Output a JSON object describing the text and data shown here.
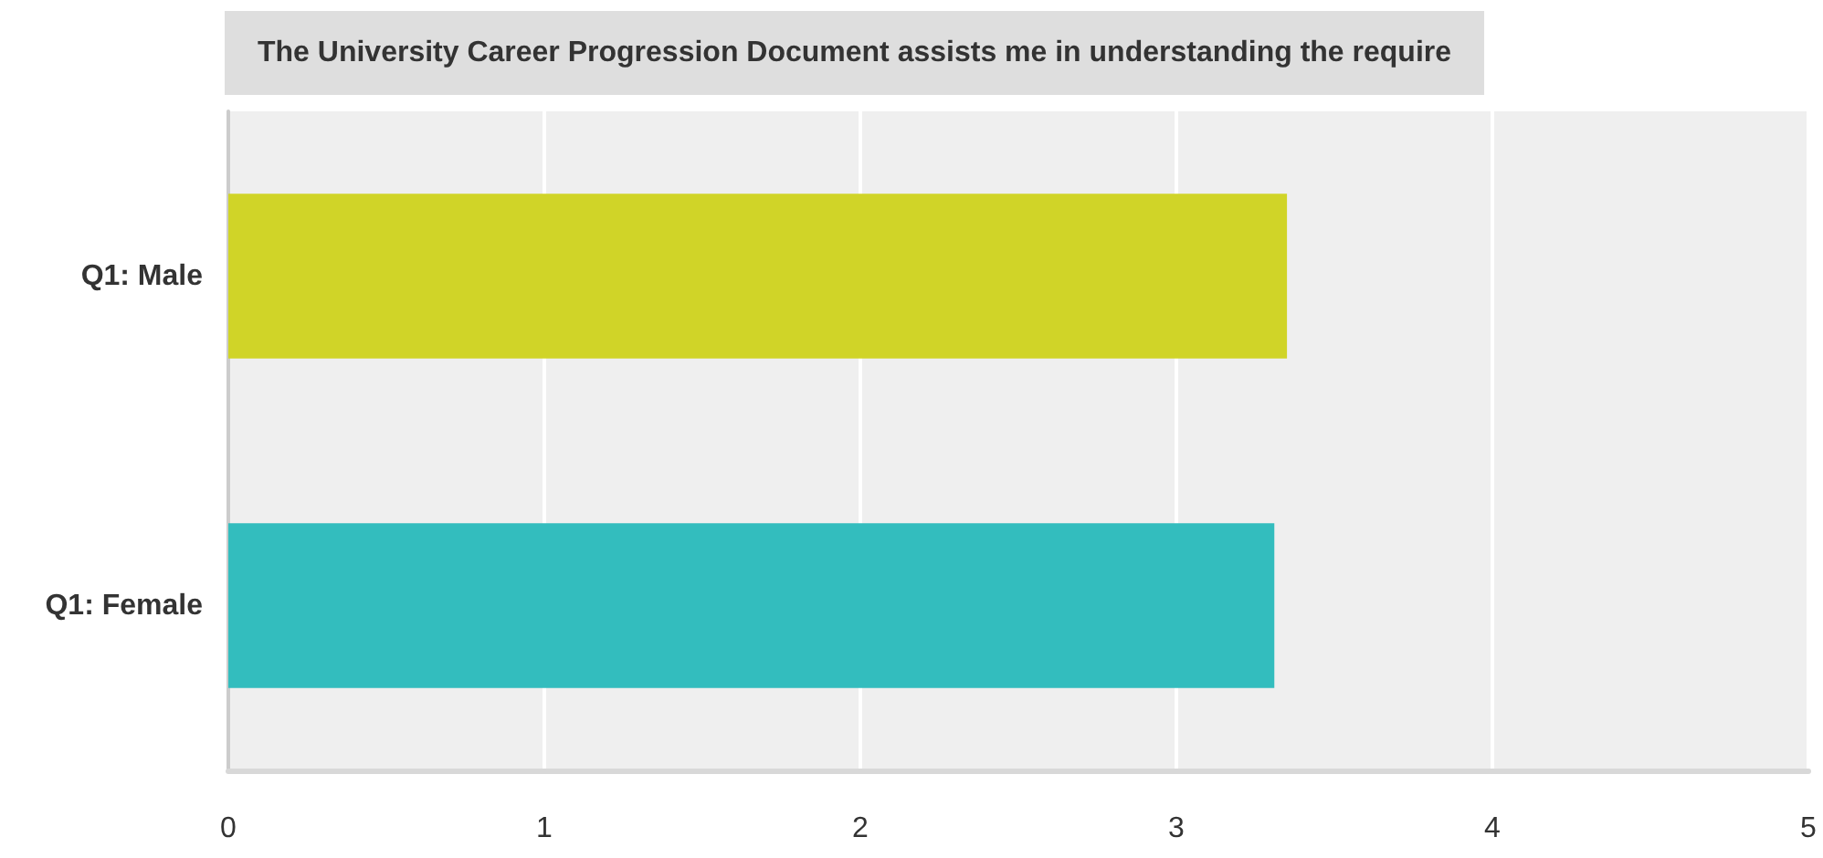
{
  "chart_data": {
    "type": "bar",
    "orientation": "horizontal",
    "title": "The University Career Progression Document assists me in understanding the require",
    "categories": [
      "Q1: Male",
      "Q1: Female"
    ],
    "values": [
      3.35,
      3.31
    ],
    "colors": [
      "#d0d428",
      "#33bdbe"
    ],
    "xlim": [
      0,
      5
    ],
    "xticks": [
      0,
      1,
      2,
      3,
      4,
      5
    ],
    "grid": "x"
  }
}
